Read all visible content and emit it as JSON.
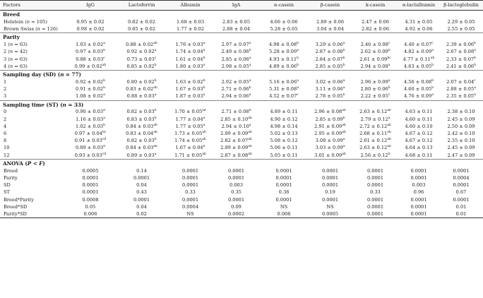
{
  "columns": [
    "Factors",
    "IgG",
    "Lactoferrin",
    "Albumin",
    "IgA",
    "α-casein",
    "β-casein",
    "k-casein",
    "α-lactalbumin",
    "β-lactoglobulin"
  ],
  "sections": [
    {
      "title": "Breed",
      "rows": [
        {
          "label": "Holstein (n = 105)",
          "cells": [
            [
              "0.95 ± 0.02",
              ""
            ],
            [
              "0.82 ± 0.02",
              ""
            ],
            [
              "1.68 ± 0.03",
              ""
            ],
            [
              "2.83 ± 0.05",
              ""
            ],
            [
              "4.66 ± 0.06",
              ""
            ],
            [
              "2.89 ± 0.06",
              ""
            ],
            [
              "2.47 ± 0.06",
              ""
            ],
            [
              "4.31 ± 0.05",
              ""
            ],
            [
              "2.29 ± 0.05",
              ""
            ]
          ]
        },
        {
          "label": "Brown Swiss (n = 126)",
          "cells": [
            [
              "0.98 ± 0.02",
              ""
            ],
            [
              "0.85 ± 0.02",
              ""
            ],
            [
              "1.77 ± 0.02",
              ""
            ],
            [
              "2.88 ± 0.04",
              ""
            ],
            [
              "5.28 ± 0.05",
              ""
            ],
            [
              "3.04 ± 0.04",
              ""
            ],
            [
              "2.82 ± 0.06",
              ""
            ],
            [
              "4.92 ± 0.06",
              ""
            ],
            [
              "2.55 ± 0.05",
              ""
            ]
          ]
        }
      ]
    },
    {
      "title": "Parity",
      "rows": [
        {
          "label": "1 (n = 63)",
          "cells": [
            [
              "1.03 ± 0.02",
              "a"
            ],
            [
              "0.88 ± 0.02",
              "ab"
            ],
            [
              "1.76 ± 0.03",
              "a"
            ],
            [
              "2.97 ± 0.07",
              "a"
            ],
            [
              "4.98 ± 0.08",
              "b"
            ],
            [
              "3.29 ± 0.06",
              "a"
            ],
            [
              "2.46 ± 0.08",
              "c"
            ],
            [
              "4.40 ± 0.07",
              "c"
            ],
            [
              "2.39 ± 0.06",
              "b"
            ]
          ]
        },
        {
          "label": "2 (n = 42)",
          "cells": [
            [
              "0.97 ± 0.03",
              "b"
            ],
            [
              "0.92 ± 0.02",
              "a"
            ],
            [
              "1.74 ± 0.04",
              "a"
            ],
            [
              "2.49 ± 0.06",
              "b"
            ],
            [
              "5.28 ± 0.09",
              "a"
            ],
            [
              "2.87 ± 0.08",
              "b"
            ],
            [
              "2.62 ± 0.09",
              "b"
            ],
            [
              "4.82 ± 0.09",
              "a"
            ],
            [
              "2.67 ± 0.08",
              "a"
            ]
          ]
        },
        {
          "label": "3 (n = 63)",
          "cells": [
            [
              "0.88 ± 0.03",
              "c"
            ],
            [
              "0.73 ± 0.03",
              "c"
            ],
            [
              "1.61 ± 0.04",
              "b"
            ],
            [
              "2.85 ± 0.06",
              "a"
            ],
            [
              "4.93 ± 0.11",
              "b"
            ],
            [
              "2.84 ± 0.07",
              "b"
            ],
            [
              "2.61 ± 0.09",
              "bc"
            ],
            [
              "4.77 ± 0.11",
              "ab"
            ],
            [
              "2.33 ± 0.07",
              "b"
            ]
          ]
        },
        {
          "label": "4 (n = 63)",
          "cells": [
            [
              "0.99 ± 0.02",
              "ab"
            ],
            [
              "0.85 ± 0.02",
              "b"
            ],
            [
              "1.80 ± 0.03",
              "a"
            ],
            [
              "2.98 ± 0.05",
              "a"
            ],
            [
              "4.89 ± 0.06",
              "b"
            ],
            [
              "2.85 ± 0.05",
              "b"
            ],
            [
              "2.94 ± 0.08",
              "a"
            ],
            [
              "4.63 ± 0.05",
              "b"
            ],
            [
              "2.41 ± 0.06",
              "b"
            ]
          ]
        }
      ]
    },
    {
      "title": "Sampling day (SD) (n = 77)",
      "rows": [
        {
          "label": "1",
          "cells": [
            [
              "0.92 ± 0.02",
              "b"
            ],
            [
              "0.80 ± 0.02",
              "b"
            ],
            [
              "1.63 ± 0.02",
              "b"
            ],
            [
              "2.92 ± 0.05",
              "a"
            ],
            [
              "5.16 ± 0.06",
              "a"
            ],
            [
              "3.02 ± 0.06",
              "a"
            ],
            [
              "2.96 ± 0.09",
              "a"
            ],
            [
              "4.56 ± 0.08",
              "b"
            ],
            [
              "2.07 ± 0.04",
              "c"
            ]
          ]
        },
        {
          "label": "2",
          "cells": [
            [
              "0.91 ± 0.02",
              "b"
            ],
            [
              "0.83 ± 0.02",
              "ab"
            ],
            [
              "1.67 ± 0.03",
              "b"
            ],
            [
              "2.71 ± 0.06",
              "b"
            ],
            [
              "5.31 ± 0.08",
              "a"
            ],
            [
              "3.11 ± 0.06",
              "a"
            ],
            [
              "2.80 ± 0.06",
              "b"
            ],
            [
              "4.60 ± 0.05",
              "b"
            ],
            [
              "2.88 ± 0.05",
              "a"
            ]
          ]
        },
        {
          "label": "3",
          "cells": [
            [
              "1.08 ± 0.02",
              "a"
            ],
            [
              "0.88 ± 0.03",
              "a"
            ],
            [
              "1.87 ± 0.03",
              "a"
            ],
            [
              "2.94 ± 0.06",
              "a"
            ],
            [
              "4.52 ± 0.07",
              "c"
            ],
            [
              "2.78 ± 0.05",
              "b"
            ],
            [
              "2.22 ± 0.05",
              "c"
            ],
            [
              "4.76 ± 0.09",
              "a"
            ],
            [
              "2.35 ± 0.05",
              "b"
            ]
          ]
        }
      ]
    },
    {
      "title": "Sampling time (ST) (n = 33)",
      "rows": [
        {
          "label": "0",
          "cells": [
            [
              "0.90 ± 0.03",
              "d"
            ],
            [
              "0.82 ± 0.03",
              "b"
            ],
            [
              "1.70 ± 0.05",
              "ab"
            ],
            [
              "2.71 ± 0.08",
              "b"
            ],
            [
              "4.89 ± 0.11",
              ""
            ],
            [
              "2.96 ± 0.08",
              "ab"
            ],
            [
              "2.63 ± 0.12",
              "ab"
            ],
            [
              "4.63 ± 0.11",
              ""
            ],
            [
              "2.38 ± 0.10",
              ""
            ]
          ]
        },
        {
          "label": "2",
          "cells": [
            [
              "1.16 ± 0.03",
              "a"
            ],
            [
              "0.83 ± 0.03",
              "b"
            ],
            [
              "1.77 ± 0.04",
              "a"
            ],
            [
              "2.85 ± 0.10",
              "ab"
            ],
            [
              "4.90 ± 0.12",
              ""
            ],
            [
              "2.85 ± 0.09",
              "b"
            ],
            [
              "2.79 ± 0.12",
              "a"
            ],
            [
              "4.60 ± 0.11",
              ""
            ],
            [
              "2.45 ± 0.09",
              ""
            ]
          ]
        },
        {
          "label": "4",
          "cells": [
            [
              "1.02 ± 0.03",
              "b"
            ],
            [
              "0.84 ± 0.03",
              "ab"
            ],
            [
              "1.77 ± 0.05",
              "a"
            ],
            [
              "2.94 ± 0.10",
              "a"
            ],
            [
              "4.98 ± 0.14",
              ""
            ],
            [
              "2.91 ± 0.09",
              "ab"
            ],
            [
              "2.72 ± 0.12",
              "ab"
            ],
            [
              "4.60 ± 0.10",
              ""
            ],
            [
              "2.50 ± 0.09",
              ""
            ]
          ]
        },
        {
          "label": "6",
          "cells": [
            [
              "0.97 ± 0.04",
              "bc"
            ],
            [
              "0.83 ± 0.04",
              "ab"
            ],
            [
              "1.73 ± 0.05",
              "ab"
            ],
            [
              "2.89 ± 0.09",
              "ab"
            ],
            [
              "5.02 ± 0.13",
              ""
            ],
            [
              "2.95 ± 0.09",
              "ab"
            ],
            [
              "2.68 ± 0.11",
              "ab"
            ],
            [
              "4.67 ± 0.12",
              ""
            ],
            [
              "2.42 ± 0.10",
              ""
            ]
          ]
        },
        {
          "label": "8",
          "cells": [
            [
              "0.91 ± 0.03",
              "cd"
            ],
            [
              "0.82 ± 0.03",
              "b"
            ],
            [
              "1.74 ± 0.05",
              "ab"
            ],
            [
              "2.82 ± 0.07",
              "ab"
            ],
            [
              "5.08 ± 0.12",
              ""
            ],
            [
              "3.08 ± 0.09",
              "a"
            ],
            [
              "2.61 ± 0.12",
              "ab"
            ],
            [
              "4.67 ± 0.12",
              ""
            ],
            [
              "2.35 ± 0.10",
              ""
            ]
          ]
        },
        {
          "label": "10",
          "cells": [
            [
              "0.89 ± 0.03",
              "d"
            ],
            [
              "0.84 ± 0.03",
              "ab"
            ],
            [
              "1.67 ± 0.04",
              "b"
            ],
            [
              "2.89 ± 0.09",
              "ab"
            ],
            [
              "5.06 ± 0.11",
              ""
            ],
            [
              "3.03 ± 0.09",
              "a"
            ],
            [
              "2.63 ± 0.12",
              "ab"
            ],
            [
              "4.64 ± 0.13",
              ""
            ],
            [
              "2.45 ± 0.09",
              ""
            ]
          ]
        },
        {
          "label": "12",
          "cells": [
            [
              "0.93 ± 0.03",
              "cd"
            ],
            [
              "0.89 ± 0.03",
              "a"
            ],
            [
              "1.71 ± 0.05",
              "ab"
            ],
            [
              "2.87 ± 0.08",
              "ab"
            ],
            [
              "5.05 ± 0.11",
              ""
            ],
            [
              "3.01 ± 0.09",
              "ab"
            ],
            [
              "2.56 ± 0.12",
              "b"
            ],
            [
              "4.68 ± 0.11",
              ""
            ],
            [
              "2.47 ± 0.09",
              ""
            ]
          ]
        }
      ]
    },
    {
      "title": "ANOVA (P < F)",
      "rows": [
        {
          "label": "Breed",
          "cells": [
            [
              "0.0005",
              ""
            ],
            [
              "0.14",
              ""
            ],
            [
              "0.0001",
              ""
            ],
            [
              "0.0001",
              ""
            ],
            [
              "0.0001",
              ""
            ],
            [
              "0.0001",
              ""
            ],
            [
              "0.0001",
              ""
            ],
            [
              "0.0001",
              ""
            ],
            [
              "0.0001",
              ""
            ]
          ]
        },
        {
          "label": "Parity",
          "cells": [
            [
              "0.0001",
              ""
            ],
            [
              "0.0001",
              ""
            ],
            [
              "0.0001",
              ""
            ],
            [
              "0.0001",
              ""
            ],
            [
              "0.0001",
              ""
            ],
            [
              "0.0001",
              ""
            ],
            [
              "0.0001",
              ""
            ],
            [
              "0.0001",
              ""
            ],
            [
              "0.0004",
              ""
            ]
          ]
        },
        {
          "label": "SD",
          "cells": [
            [
              "0.0001",
              ""
            ],
            [
              "0.04",
              ""
            ],
            [
              "0.0001",
              ""
            ],
            [
              "0.003",
              ""
            ],
            [
              "0.0001",
              ""
            ],
            [
              "0.0001",
              ""
            ],
            [
              "0.0001",
              ""
            ],
            [
              "0.003",
              ""
            ],
            [
              "0.0001",
              ""
            ]
          ]
        },
        {
          "label": "ST",
          "cells": [
            [
              "0.0001",
              ""
            ],
            [
              "0.43",
              ""
            ],
            [
              "0.33",
              ""
            ],
            [
              "0.35",
              ""
            ],
            [
              "0.38",
              ""
            ],
            [
              "0.19",
              ""
            ],
            [
              "0.33",
              ""
            ],
            [
              "0.96",
              ""
            ],
            [
              "0.67",
              ""
            ]
          ]
        },
        {
          "label": "Breed*Parity",
          "cells": [
            [
              "0.0008",
              ""
            ],
            [
              "0.0001",
              ""
            ],
            [
              "0.0001",
              ""
            ],
            [
              "0.0001",
              ""
            ],
            [
              "0.0001",
              ""
            ],
            [
              "0.0001",
              ""
            ],
            [
              "0.0001",
              ""
            ],
            [
              "0.0001",
              ""
            ],
            [
              "0.0001",
              ""
            ]
          ]
        },
        {
          "label": "Breed*SD",
          "cells": [
            [
              "0.05",
              ""
            ],
            [
              "0.04",
              ""
            ],
            [
              "0.0004",
              ""
            ],
            [
              "0.09",
              ""
            ],
            [
              "NS",
              ""
            ],
            [
              "NS",
              ""
            ],
            [
              "0.0001",
              ""
            ],
            [
              "0.0001",
              ""
            ],
            [
              "0.01",
              ""
            ]
          ]
        },
        {
          "label": "Parity*SD",
          "cells": [
            [
              "0.006",
              ""
            ],
            [
              "0.02",
              ""
            ],
            [
              "NS",
              ""
            ],
            [
              "0.0002",
              ""
            ],
            [
              "0.008",
              ""
            ],
            [
              "0.0005",
              ""
            ],
            [
              "0.0001",
              ""
            ],
            [
              "0.0001",
              ""
            ],
            [
              "0.01",
              ""
            ]
          ]
        }
      ]
    }
  ]
}
